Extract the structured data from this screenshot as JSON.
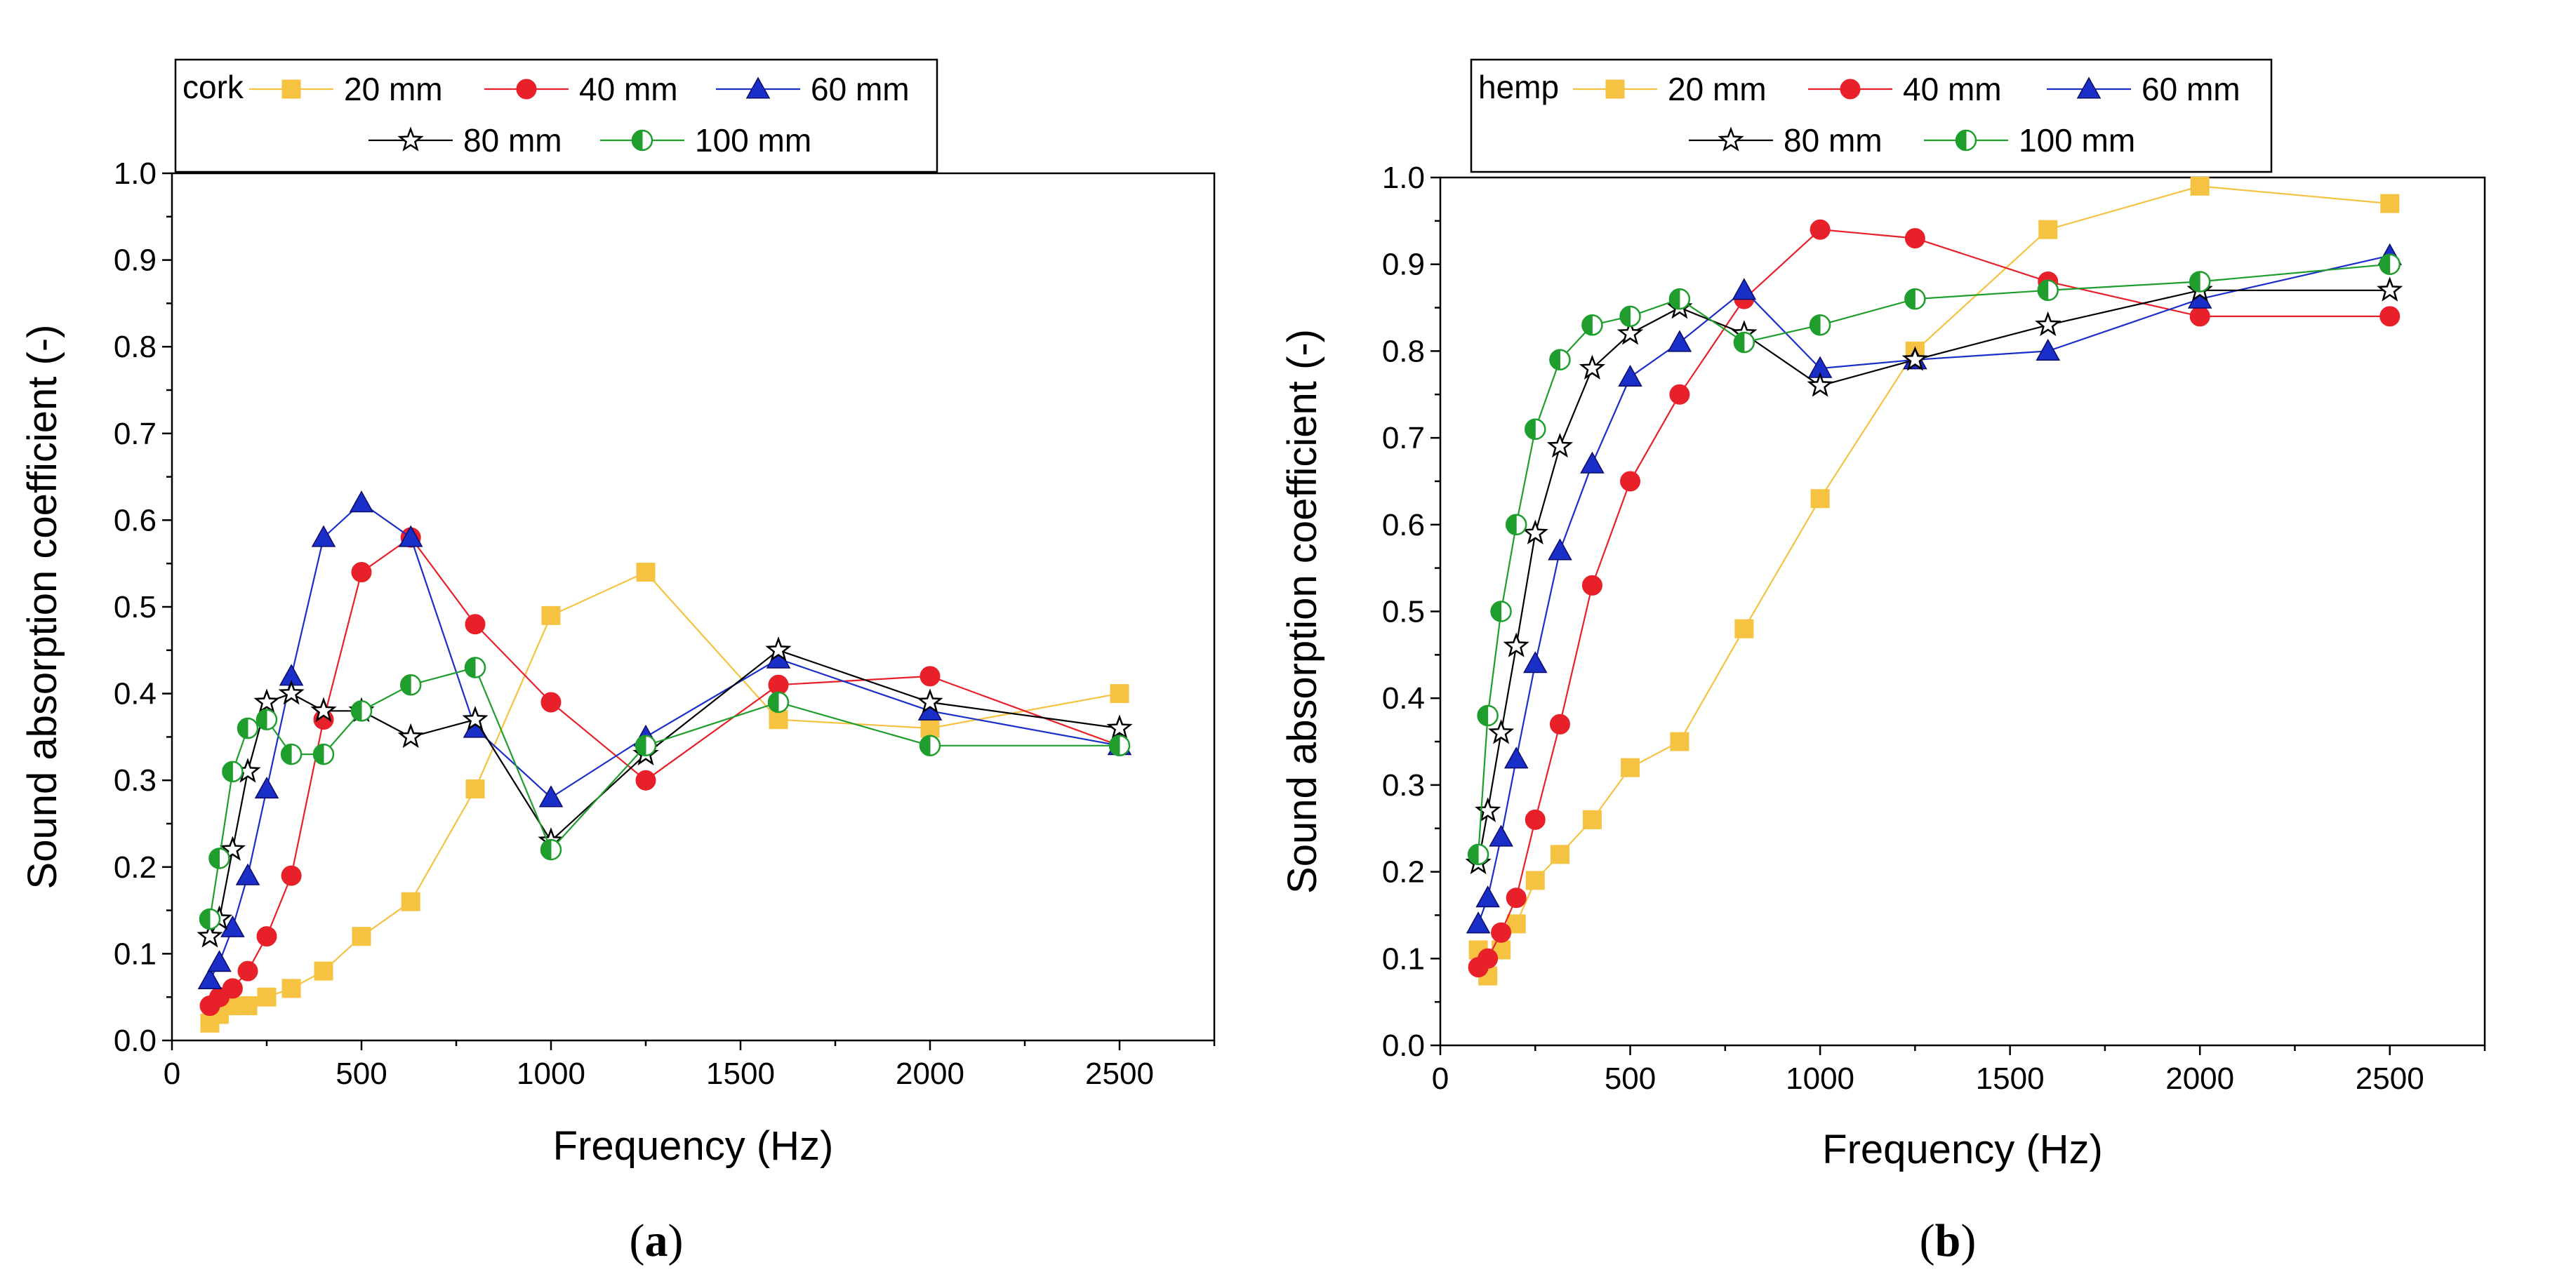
{
  "chart_data": [
    {
      "type": "line",
      "panel_label": "(a)",
      "panel_letter": "a",
      "material": "cork",
      "xlabel": "Frequency (Hz)",
      "ylabel": "Sound absorption coefficient (-)",
      "xlim": [
        0,
        2750
      ],
      "ylim": [
        0.0,
        1.0
      ],
      "xticks": [
        0,
        500,
        1000,
        1500,
        2000,
        2500
      ],
      "yticks": [
        "0.0",
        "0.1",
        "0.2",
        "0.3",
        "0.4",
        "0.5",
        "0.6",
        "0.7",
        "0.8",
        "0.9",
        "1.0"
      ],
      "legend_position": "top-left",
      "x": [
        100,
        125,
        160,
        200,
        250,
        315,
        400,
        500,
        630,
        800,
        1000,
        1250,
        1600,
        2000,
        2500
      ],
      "series": [
        {
          "name": "20 mm",
          "color": "#f5c242",
          "marker": "square",
          "values": [
            0.02,
            0.03,
            0.04,
            0.04,
            0.05,
            0.06,
            0.08,
            0.12,
            0.16,
            0.29,
            0.49,
            0.54,
            0.37,
            0.36,
            0.4
          ]
        },
        {
          "name": "40 mm",
          "color": "#e8202a",
          "marker": "circle",
          "values": [
            0.04,
            0.05,
            0.06,
            0.08,
            0.12,
            0.19,
            0.37,
            0.54,
            0.58,
            0.48,
            0.39,
            0.3,
            0.41,
            0.42,
            0.34
          ]
        },
        {
          "name": "60 mm",
          "color": "#1a2ec8",
          "marker": "triangle",
          "values": [
            0.07,
            0.09,
            0.13,
            0.19,
            0.29,
            0.42,
            0.58,
            0.62,
            0.58,
            0.36,
            0.28,
            0.35,
            0.44,
            0.38,
            0.34
          ]
        },
        {
          "name": "80 mm",
          "color": "#000000",
          "marker": "star",
          "values": [
            0.12,
            0.14,
            0.22,
            0.31,
            0.39,
            0.4,
            0.38,
            0.38,
            0.35,
            0.37,
            0.23,
            0.33,
            0.45,
            0.39,
            0.36
          ]
        },
        {
          "name": "100 mm",
          "color": "#1f9e2e",
          "marker": "halfcircle",
          "values": [
            0.14,
            0.21,
            0.31,
            0.36,
            0.37,
            0.33,
            0.33,
            0.38,
            0.41,
            0.43,
            0.22,
            0.34,
            0.39,
            0.34,
            0.34
          ]
        }
      ]
    },
    {
      "type": "line",
      "panel_label": "(b)",
      "panel_letter": "b",
      "material": "hemp",
      "xlabel": "Frequency (Hz)",
      "ylabel": "Sound absorption coefficient (-)",
      "xlim": [
        0,
        2750
      ],
      "ylim": [
        0.0,
        1.0
      ],
      "xticks": [
        0,
        500,
        1000,
        1500,
        2000,
        2500
      ],
      "yticks": [
        "0.0",
        "0.1",
        "0.2",
        "0.3",
        "0.4",
        "0.5",
        "0.6",
        "0.7",
        "0.8",
        "0.9",
        "1.0"
      ],
      "legend_position": "top-left",
      "x": [
        100,
        125,
        160,
        200,
        250,
        315,
        400,
        500,
        630,
        800,
        1000,
        1250,
        1600,
        2000,
        2500
      ],
      "series": [
        {
          "name": "20 mm",
          "color": "#f5c242",
          "marker": "square",
          "values": [
            0.11,
            0.08,
            0.11,
            0.14,
            0.19,
            0.22,
            0.26,
            0.32,
            0.35,
            0.48,
            0.63,
            0.8,
            0.94,
            0.99,
            0.97
          ]
        },
        {
          "name": "40 mm",
          "color": "#e8202a",
          "marker": "circle",
          "values": [
            0.09,
            0.1,
            0.13,
            0.17,
            0.26,
            0.37,
            0.53,
            0.65,
            0.75,
            0.86,
            0.94,
            0.93,
            0.88,
            0.84,
            0.84
          ]
        },
        {
          "name": "60 mm",
          "color": "#1a2ec8",
          "marker": "triangle",
          "values": [
            0.14,
            0.17,
            0.24,
            0.33,
            0.44,
            0.57,
            0.67,
            0.77,
            0.81,
            0.87,
            0.78,
            0.79,
            0.8,
            0.86,
            0.91
          ]
        },
        {
          "name": "80 mm",
          "color": "#000000",
          "marker": "star",
          "values": [
            0.21,
            0.27,
            0.36,
            0.46,
            0.59,
            0.69,
            0.78,
            0.82,
            0.85,
            0.82,
            0.76,
            0.79,
            0.83,
            0.87,
            0.87
          ]
        },
        {
          "name": "100 mm",
          "color": "#1f9e2e",
          "marker": "halfcircle",
          "values": [
            0.22,
            0.38,
            0.5,
            0.6,
            0.71,
            0.79,
            0.83,
            0.84,
            0.86,
            0.81,
            0.83,
            0.86,
            0.87,
            0.88,
            0.9
          ]
        }
      ]
    }
  ]
}
